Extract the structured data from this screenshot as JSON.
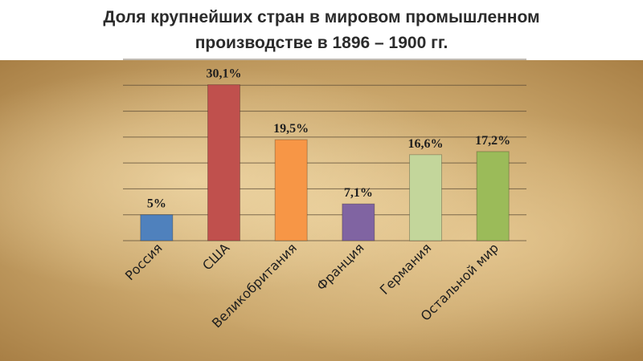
{
  "page": {
    "title_line1": "Доля крупнейших стран в мировом промышленном",
    "title_line2": "производстве в 1896 – 1900 гг."
  },
  "chart_data": {
    "type": "bar",
    "title": "Доля крупнейших стран в мировом промышленном производстве в 1896 – 1900 гг.",
    "categories": [
      "Россия",
      "США",
      "Великобритания",
      "Франция",
      "Германия",
      "Остальной мир"
    ],
    "values": [
      5,
      30.1,
      19.5,
      7.1,
      16.6,
      17.2
    ],
    "data_labels": [
      "5%",
      "30,1%",
      "19,5%",
      "7,1%",
      "16,6%",
      "17,2%"
    ],
    "colors": [
      "#4f81bd",
      "#c0504d",
      "#f79646",
      "#8064a2",
      "#c3d69b",
      "#9bbb59"
    ],
    "ylim": [
      0,
      35
    ],
    "grid": true,
    "legend": "none",
    "xlabel": "",
    "ylabel": ""
  }
}
